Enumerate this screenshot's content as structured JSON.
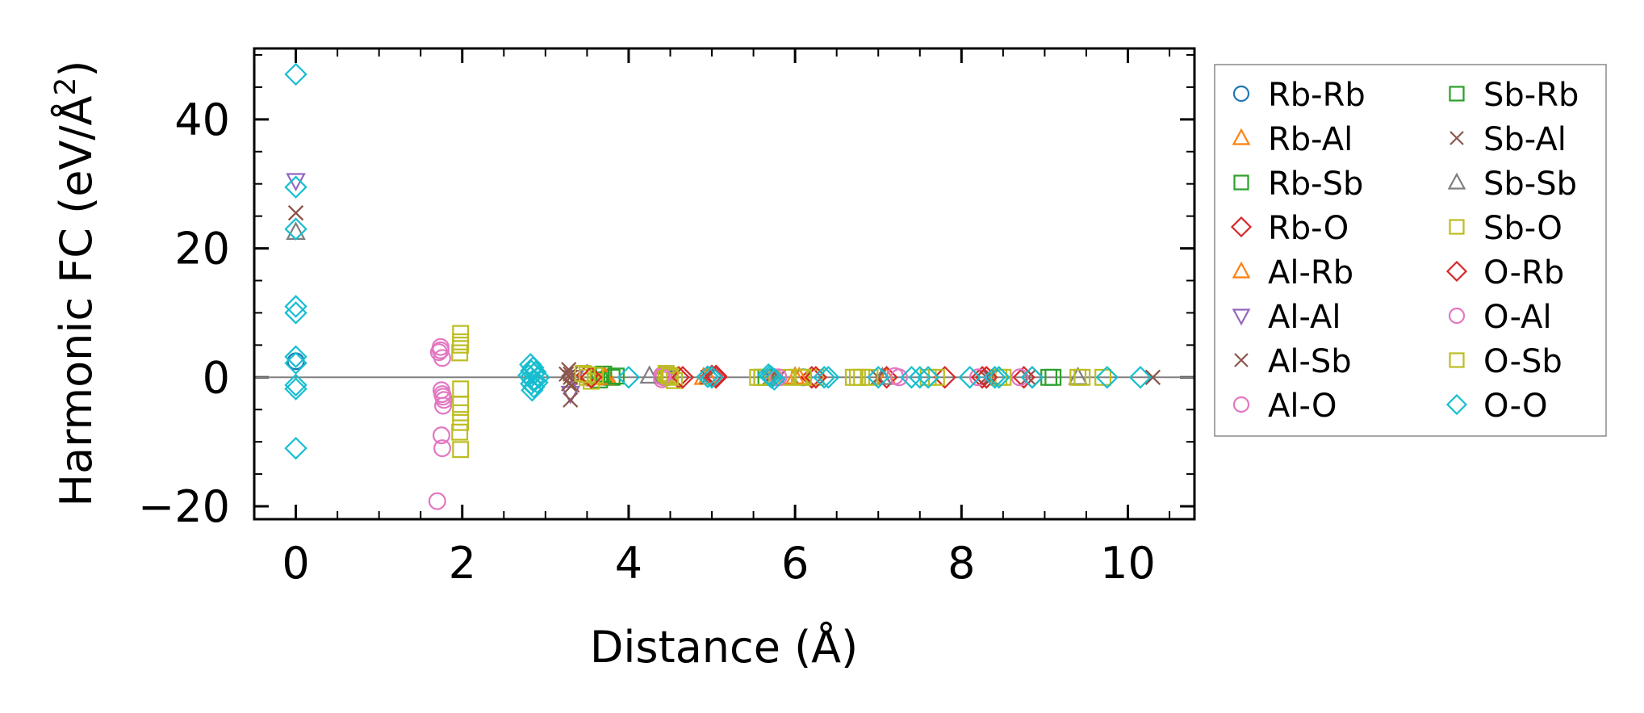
{
  "chart_data": {
    "type": "scatter",
    "xlabel": "Distance (Å)",
    "ylabel_main": "Harmonic FC (eV/Å",
    "ylabel_sup": "2",
    "ylabel_end": ")",
    "xlim": [
      -0.5,
      10.8
    ],
    "ylim": [
      -22,
      51
    ],
    "x_ticks": [
      0,
      2,
      4,
      6,
      8,
      10
    ],
    "x_tick_labels": [
      "0",
      "2",
      "4",
      "6",
      "8",
      "10"
    ],
    "y_ticks": [
      -20,
      0,
      20,
      40
    ],
    "y_tick_labels": [
      "−20",
      "0",
      "20",
      "40"
    ],
    "x_minor_step": 0.5,
    "y_minor_step": 5,
    "zero_line": true,
    "grid": false,
    "legend_position": "outside-right",
    "series": [
      {
        "name": "Rb-Rb",
        "marker": "circle",
        "color": "#1f77b4",
        "points": [
          [
            0,
            2.5
          ],
          [
            4.4,
            0.3
          ],
          [
            4.45,
            0
          ],
          [
            5.75,
            0
          ],
          [
            6.1,
            0
          ]
        ]
      },
      {
        "name": "Rb-Al",
        "marker": "triangle",
        "color": "#ff7f0e",
        "points": [
          [
            3.7,
            0.2
          ],
          [
            3.75,
            -0.1
          ],
          [
            4.9,
            0
          ],
          [
            6.0,
            0.1
          ],
          [
            7.1,
            0
          ]
        ]
      },
      {
        "name": "Rb-Sb",
        "marker": "square",
        "color": "#2ca02c",
        "points": [
          [
            3.7,
            0.5
          ],
          [
            3.8,
            0
          ],
          [
            3.65,
            -0.4
          ],
          [
            5.6,
            0
          ],
          [
            9.1,
            0
          ]
        ]
      },
      {
        "name": "Rb-O",
        "marker": "diamond",
        "color": "#d62728",
        "points": [
          [
            3.5,
            0.3
          ],
          [
            4.6,
            0
          ],
          [
            5.0,
            0.2
          ],
          [
            5.05,
            0
          ],
          [
            6.2,
            0
          ],
          [
            7.1,
            0
          ],
          [
            7.8,
            0
          ],
          [
            8.25,
            0
          ],
          [
            8.3,
            0
          ],
          [
            8.75,
            0
          ]
        ]
      },
      {
        "name": "Al-Rb",
        "marker": "triangle",
        "color": "#ff7f0e",
        "points": [
          [
            3.72,
            0
          ],
          [
            4.95,
            0.1
          ],
          [
            6.05,
            0
          ]
        ]
      },
      {
        "name": "Al-Al",
        "marker": "triangle-down",
        "color": "#9467bd",
        "points": [
          [
            0,
            30.5
          ],
          [
            3.3,
            -2.5
          ],
          [
            3.35,
            0
          ],
          [
            5.7,
            0
          ]
        ]
      },
      {
        "name": "Al-Sb",
        "marker": "x",
        "color": "#8c564b",
        "points": [
          [
            0,
            25.5
          ],
          [
            3.28,
            1.2
          ],
          [
            3.3,
            0
          ],
          [
            3.32,
            -1.2
          ],
          [
            3.3,
            -3.5
          ],
          [
            3.25,
            0.5
          ],
          [
            4.95,
            0
          ],
          [
            5.8,
            0
          ],
          [
            7.0,
            0
          ],
          [
            8.3,
            0
          ],
          [
            8.8,
            0
          ],
          [
            10.3,
            0
          ]
        ]
      },
      {
        "name": "Al-O",
        "marker": "circle",
        "color": "#e377c2",
        "points": [
          [
            1.72,
            3.9
          ],
          [
            1.74,
            4.7
          ],
          [
            1.76,
            3.0
          ],
          [
            1.75,
            -2.0
          ],
          [
            1.76,
            -2.6
          ],
          [
            1.78,
            -3.5
          ],
          [
            1.77,
            -4.4
          ],
          [
            1.75,
            -9.0
          ],
          [
            1.76,
            -11.0
          ],
          [
            1.7,
            -19.2
          ],
          [
            4.4,
            0.3
          ],
          [
            4.42,
            0
          ],
          [
            4.45,
            0.5
          ],
          [
            4.4,
            -0.3
          ],
          [
            5.75,
            0
          ],
          [
            7.2,
            0.2
          ],
          [
            8.2,
            0
          ],
          [
            8.7,
            0
          ]
        ]
      },
      {
        "name": "Sb-Rb",
        "marker": "square",
        "color": "#2ca02c",
        "points": [
          [
            3.6,
            0.3
          ],
          [
            3.85,
            0.2
          ],
          [
            5.65,
            0
          ],
          [
            9.05,
            0
          ]
        ]
      },
      {
        "name": "Sb-Al",
        "marker": "x",
        "color": "#8c564b",
        "points": [
          [
            0,
            25.5
          ],
          [
            3.3,
            0.5
          ],
          [
            3.28,
            -1.0
          ],
          [
            5.7,
            0
          ],
          [
            8.35,
            0
          ],
          [
            10.3,
            0
          ]
        ]
      },
      {
        "name": "Sb-Sb",
        "marker": "triangle",
        "color": "#7f7f7f",
        "points": [
          [
            0,
            22.5
          ],
          [
            4.25,
            0.2
          ],
          [
            7.05,
            0
          ],
          [
            9.4,
            0
          ]
        ]
      },
      {
        "name": "Sb-O",
        "marker": "square",
        "color": "#bcbd22",
        "points": [
          [
            1.98,
            6.8
          ],
          [
            1.98,
            5.0
          ],
          [
            1.97,
            3.8
          ],
          [
            1.98,
            -1.8
          ],
          [
            1.98,
            -4.2
          ],
          [
            1.98,
            -7.0
          ],
          [
            1.97,
            -8.5
          ],
          [
            1.98,
            -11.2
          ],
          [
            3.45,
            0.6
          ],
          [
            3.5,
            0
          ],
          [
            3.55,
            -0.6
          ],
          [
            3.6,
            0.3
          ],
          [
            4.45,
            0.6
          ],
          [
            4.5,
            0
          ],
          [
            4.55,
            -0.5
          ],
          [
            4.48,
            0.3
          ],
          [
            5.55,
            0
          ],
          [
            5.9,
            0
          ],
          [
            6.05,
            0
          ],
          [
            6.25,
            0
          ],
          [
            6.7,
            0
          ],
          [
            6.8,
            0
          ],
          [
            6.9,
            0
          ],
          [
            7.6,
            0
          ],
          [
            8.5,
            0
          ],
          [
            9.4,
            0
          ],
          [
            9.7,
            0
          ]
        ]
      },
      {
        "name": "O-Rb",
        "marker": "diamond",
        "color": "#d62728",
        "points": [
          [
            3.55,
            0
          ],
          [
            4.65,
            0
          ],
          [
            5.05,
            0.2
          ],
          [
            6.25,
            0
          ],
          [
            8.3,
            0
          ],
          [
            8.85,
            0
          ]
        ]
      },
      {
        "name": "O-Al",
        "marker": "circle",
        "color": "#e377c2",
        "points": [
          [
            1.74,
            4.2
          ],
          [
            1.77,
            -3.0
          ],
          [
            4.4,
            0.1
          ],
          [
            5.8,
            0
          ],
          [
            7.25,
            0
          ]
        ]
      },
      {
        "name": "O-Sb",
        "marker": "square",
        "color": "#bcbd22",
        "points": [
          [
            1.98,
            5.5
          ],
          [
            1.98,
            -5.5
          ],
          [
            3.5,
            0.4
          ],
          [
            4.5,
            0.2
          ],
          [
            5.6,
            0
          ],
          [
            6.1,
            0
          ],
          [
            6.75,
            0
          ],
          [
            7.7,
            0
          ],
          [
            8.45,
            0
          ],
          [
            9.45,
            0
          ]
        ]
      },
      {
        "name": "O-O",
        "marker": "diamond",
        "color": "#17becf",
        "points": [
          [
            0,
            47
          ],
          [
            0,
            29.5
          ],
          [
            0,
            23
          ],
          [
            0,
            11
          ],
          [
            0,
            10
          ],
          [
            0,
            3.2
          ],
          [
            0,
            2.2
          ],
          [
            0,
            -1.2
          ],
          [
            0,
            -1.8
          ],
          [
            0,
            -11
          ],
          [
            2.82,
            2.0
          ],
          [
            2.85,
            1.5
          ],
          [
            2.83,
            1.0
          ],
          [
            2.86,
            0.5
          ],
          [
            2.82,
            0
          ],
          [
            2.85,
            -0.5
          ],
          [
            2.83,
            -1.0
          ],
          [
            2.86,
            -1.5
          ],
          [
            2.84,
            -2.0
          ],
          [
            2.88,
            0.8
          ],
          [
            2.9,
            -0.8
          ],
          [
            2.8,
            0.3
          ],
          [
            2.92,
            0
          ],
          [
            4.0,
            0
          ],
          [
            4.95,
            0.1
          ],
          [
            5.0,
            0
          ],
          [
            5.68,
            0.4
          ],
          [
            5.72,
            0
          ],
          [
            5.75,
            -0.3
          ],
          [
            5.7,
            0.2
          ],
          [
            6.35,
            0
          ],
          [
            6.4,
            0
          ],
          [
            7.0,
            0
          ],
          [
            7.4,
            0
          ],
          [
            7.5,
            0
          ],
          [
            7.6,
            0
          ],
          [
            8.1,
            0
          ],
          [
            8.4,
            0
          ],
          [
            8.45,
            0
          ],
          [
            8.85,
            0
          ],
          [
            9.75,
            0
          ],
          [
            10.15,
            0
          ]
        ]
      }
    ]
  }
}
